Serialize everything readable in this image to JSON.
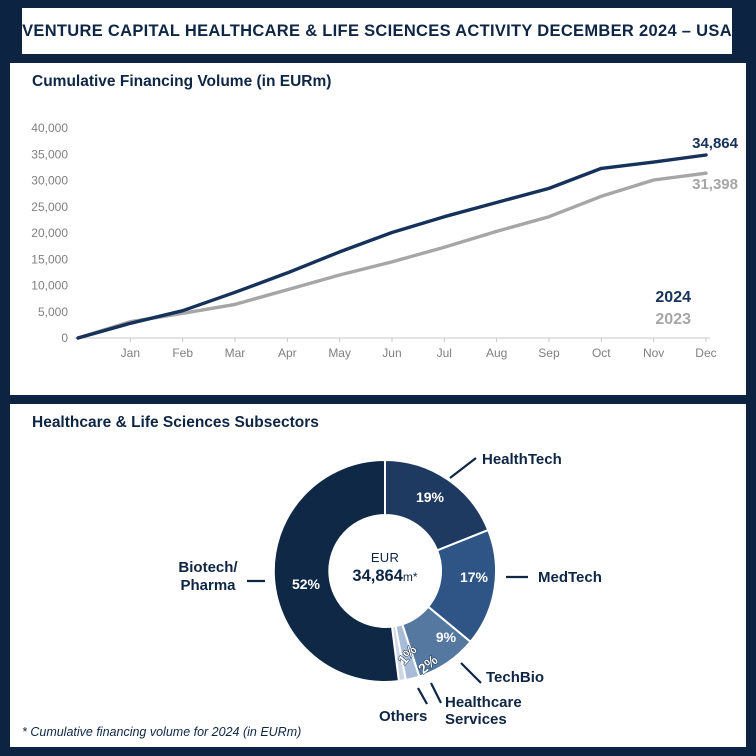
{
  "header": {
    "title": "VENTURE CAPITAL HEALTHCARE & LIFE SCIENCES ACTIVITY DECEMBER 2024 – USA"
  },
  "line_panel": {
    "title": "Cumulative Financing Volume (in EURm)",
    "end_label_2024": "34,864",
    "end_label_2023": "31,398",
    "legend_2024": "2024",
    "legend_2023": "2023"
  },
  "donut_panel": {
    "title": "Healthcare & Life Sciences Subsectors",
    "center_line1": "EUR",
    "center_value": "34,864",
    "center_suffix": "m*",
    "labels": {
      "healthtech": "HealthTech",
      "medtech": "MedTech",
      "techbio": "TechBio",
      "healthcare_services_line1": "Healthcare",
      "healthcare_services_line2": "Services",
      "others": "Others",
      "biotech_line1": "Biotech/",
      "biotech_line2": "Pharma"
    },
    "footnote": "* Cumulative financing volume for 2024 (in EURm)"
  },
  "colors": {
    "background_navy": "#0d2342",
    "panel_white": "#ffffff",
    "navy_text": "#0e2644",
    "line_2024": "#16315a",
    "line_2023": "#a6a6a6",
    "axis_text": "#7f7f7f",
    "axis_line": "#c9c9c9"
  },
  "chart_data": [
    {
      "type": "line",
      "title": "Cumulative Financing Volume (in EURm)",
      "x_tick_labels": [
        "Jan",
        "Feb",
        "Mar",
        "Apr",
        "May",
        "Jun",
        "Jul",
        "Aug",
        "Sep",
        "Oct",
        "Nov",
        "Dec"
      ],
      "note": "series start at 0 one step before Jan; values in EURm, estimated from plot except labeled endpoints",
      "ylim": [
        0,
        40000
      ],
      "y_ticks": [
        {
          "value": 0,
          "label": "0"
        },
        {
          "value": 5000,
          "label": "5,000"
        },
        {
          "value": 10000,
          "label": "10,000"
        },
        {
          "value": 15000,
          "label": "15,000"
        },
        {
          "value": 20000,
          "label": "20,000"
        },
        {
          "value": 25000,
          "label": "25,000"
        },
        {
          "value": 30000,
          "label": "30,000"
        },
        {
          "value": 35000,
          "label": "35,000"
        },
        {
          "value": 40000,
          "label": "40,000"
        }
      ],
      "series": [
        {
          "name": "2024",
          "color": "#16315a",
          "end_label": "34,864",
          "values": [
            0,
            2800,
            5200,
            8700,
            12400,
            16400,
            20100,
            23100,
            25800,
            28500,
            32300,
            33500,
            34864
          ]
        },
        {
          "name": "2023",
          "color": "#a6a6a6",
          "end_label": "31,398",
          "values": [
            0,
            3100,
            4700,
            6400,
            9200,
            12000,
            14500,
            17300,
            20300,
            23100,
            27000,
            30100,
            31398
          ]
        }
      ],
      "legend_position": "bottom-right",
      "grid": false
    },
    {
      "type": "donut",
      "title": "Healthcare & Life Sciences Subsectors",
      "center_label": "EUR 34,864m*",
      "start_angle_deg": 0,
      "direction": "clockwise",
      "slices": [
        {
          "label": "HealthTech",
          "pct": 19,
          "pct_label": "19%",
          "color": "#1f3a60"
        },
        {
          "label": "MedTech",
          "pct": 17,
          "pct_label": "17%",
          "color": "#2e5585"
        },
        {
          "label": "TechBio",
          "pct": 9,
          "pct_label": "9%",
          "color": "#54789f"
        },
        {
          "label": "Healthcare Services",
          "pct": 2,
          "pct_label": "2%",
          "color": "#a9bcd7"
        },
        {
          "label": "Others",
          "pct": 1,
          "pct_label": "1%",
          "color": "#cdd7e6"
        },
        {
          "label": "Biotech/Pharma",
          "pct": 52,
          "pct_label": "52%",
          "color": "#0e2845"
        }
      ]
    }
  ]
}
